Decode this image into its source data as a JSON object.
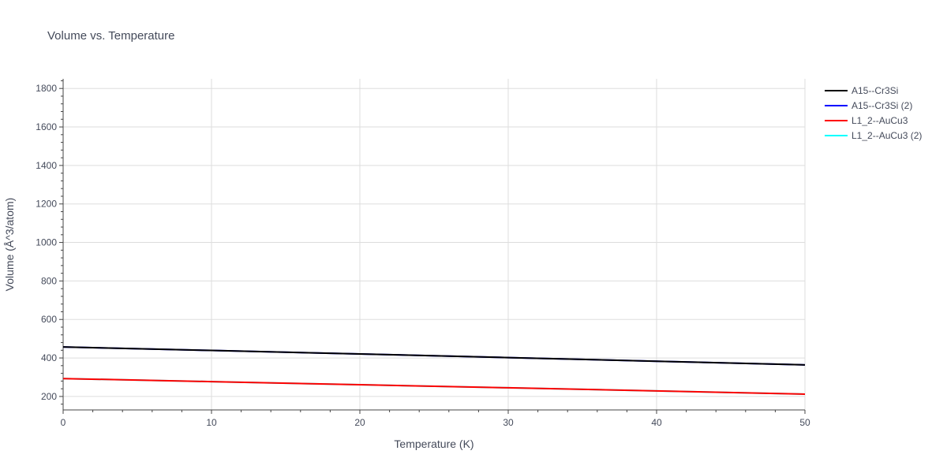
{
  "chart_data": {
    "type": "line",
    "title": "Volume vs. Temperature",
    "xlabel": "Temperature (K)",
    "ylabel": "Volume (Å^3/atom)",
    "xlim": [
      0,
      50
    ],
    "ylim": [
      130,
      1850
    ],
    "xticks": [
      0,
      10,
      20,
      30,
      40,
      50
    ],
    "yticks": [
      200,
      400,
      600,
      800,
      1000,
      1200,
      1400,
      1600,
      1800
    ],
    "grid": true,
    "legend_position": "top-right",
    "series": [
      {
        "name": "A15--Cr3Si",
        "color": "#000000",
        "x": [
          0,
          10,
          20,
          30,
          40,
          50
        ],
        "y": [
          457,
          439,
          421,
          402,
          383,
          364
        ]
      },
      {
        "name": "A15--Cr3Si (2)",
        "color": "#0000ff",
        "x": [
          0,
          10,
          20,
          30,
          40,
          50
        ],
        "y": [
          457,
          439,
          421,
          402,
          383,
          364
        ]
      },
      {
        "name": "L1_2--AuCu3",
        "color": "#ff0000",
        "x": [
          0,
          10,
          20,
          30,
          40,
          50
        ],
        "y": [
          293,
          277,
          261,
          245,
          229,
          212
        ]
      },
      {
        "name": "L1_2--AuCu3 (2)",
        "color": "#00ffff",
        "x": [
          0,
          10,
          20,
          30,
          40,
          50
        ],
        "y": [
          293,
          277,
          261,
          245,
          229,
          212
        ]
      }
    ]
  }
}
